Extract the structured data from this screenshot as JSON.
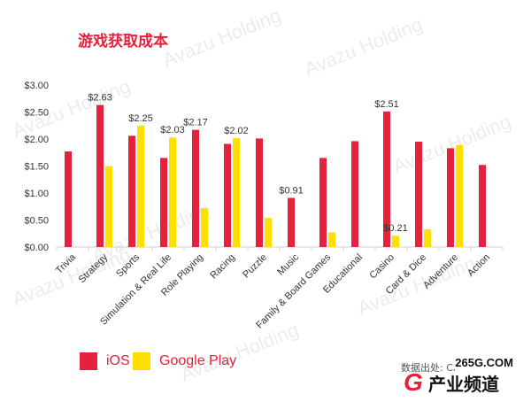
{
  "title": "游戏获取成本",
  "watermark_text": "Avazu Holding",
  "legend": {
    "ios": "iOS",
    "google_play": "Google Play"
  },
  "source": "数据出处: Cl",
  "logo": {
    "site": "265G.COM",
    "g": "G",
    "cn": "产业频道"
  },
  "colors": {
    "ios": "#e5213c",
    "google_play": "#ffe000",
    "title": "#e5213c",
    "axis": "#d0d0d0"
  },
  "chart_data": {
    "type": "bar",
    "title": "游戏获取成本",
    "xlabel": "",
    "ylabel": "",
    "ylim": [
      0,
      3.0
    ],
    "y_ticks": [
      "$0.00",
      "$0.50",
      "$1.00",
      "$1.50",
      "$2.00",
      "$2.50",
      "$3.00"
    ],
    "categories": [
      "Trivia",
      "Strategy",
      "Sports",
      "Simulation & Real Life",
      "Role Playing",
      "Racing",
      "Puzzle",
      "Music",
      "Family & Board Games",
      "Educational",
      "Casino",
      "Card & Dice",
      "Adventure",
      "Action"
    ],
    "series": [
      {
        "name": "iOS",
        "values": [
          1.77,
          2.63,
          2.06,
          1.65,
          2.17,
          1.91,
          2.01,
          0.91,
          1.65,
          1.96,
          2.51,
          1.95,
          1.83,
          1.52
        ]
      },
      {
        "name": "Google Play",
        "values": [
          null,
          1.5,
          2.25,
          2.03,
          0.72,
          2.02,
          0.54,
          null,
          0.27,
          null,
          0.21,
          0.33,
          1.89,
          null
        ]
      }
    ],
    "data_labels": [
      {
        "category": "Strategy",
        "series": "iOS",
        "text": "$2.63"
      },
      {
        "category": "Sports",
        "series": "Google Play",
        "text": "$2.25"
      },
      {
        "category": "Simulation & Real Life",
        "series": "Google Play",
        "text": "$2.03"
      },
      {
        "category": "Role Playing",
        "series": "iOS",
        "text": "$2.17"
      },
      {
        "category": "Racing",
        "series": "Google Play",
        "text": "$2.02"
      },
      {
        "category": "Music",
        "series": "iOS",
        "text": "$0.91"
      },
      {
        "category": "Casino",
        "series": "iOS",
        "text": "$2.51"
      },
      {
        "category": "Casino",
        "series": "Google Play",
        "text": "$0.21"
      }
    ],
    "legend_position": "bottom-left",
    "grid": false
  }
}
